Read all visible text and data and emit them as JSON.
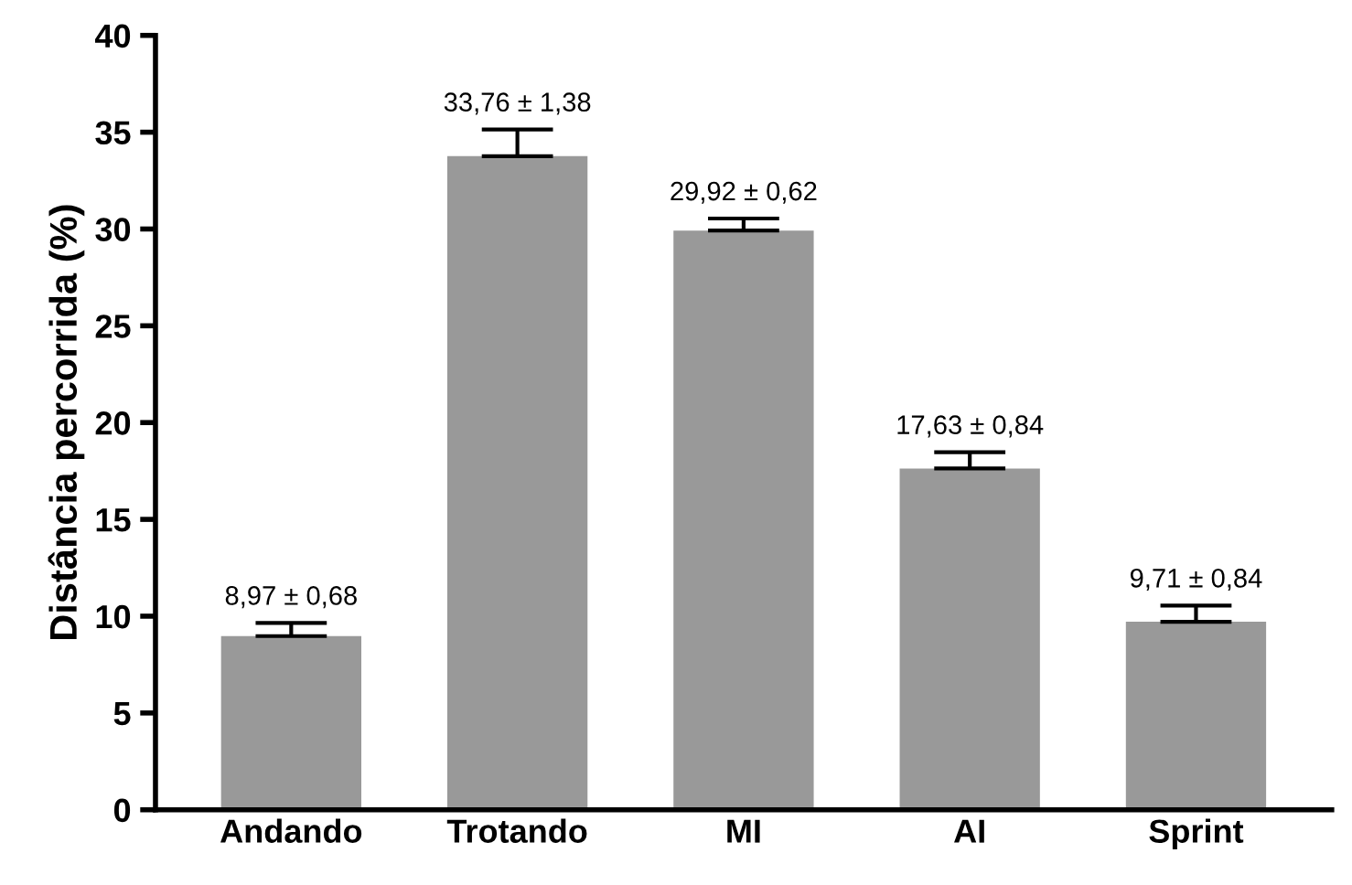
{
  "chart_data": {
    "type": "bar",
    "ylabel": "Distância percorrida (%)",
    "categories": [
      "Andando",
      "Trotando",
      "MI",
      "AI",
      "Sprint"
    ],
    "values": [
      8.97,
      33.76,
      29.92,
      17.63,
      9.71
    ],
    "errors": [
      0.68,
      1.38,
      0.62,
      0.84,
      0.84
    ],
    "value_labels": [
      "8,97 ± 0,68",
      "33,76 ± 1,38",
      "29,92 ± 0,62",
      "17,63 ± 0,84",
      "9,71 ± 0,84"
    ],
    "color": "#999999",
    "ylim": [
      0,
      40
    ],
    "yticks": [
      0,
      5,
      10,
      15,
      20,
      25,
      30,
      35,
      40
    ],
    "grid": false,
    "legend": false
  }
}
